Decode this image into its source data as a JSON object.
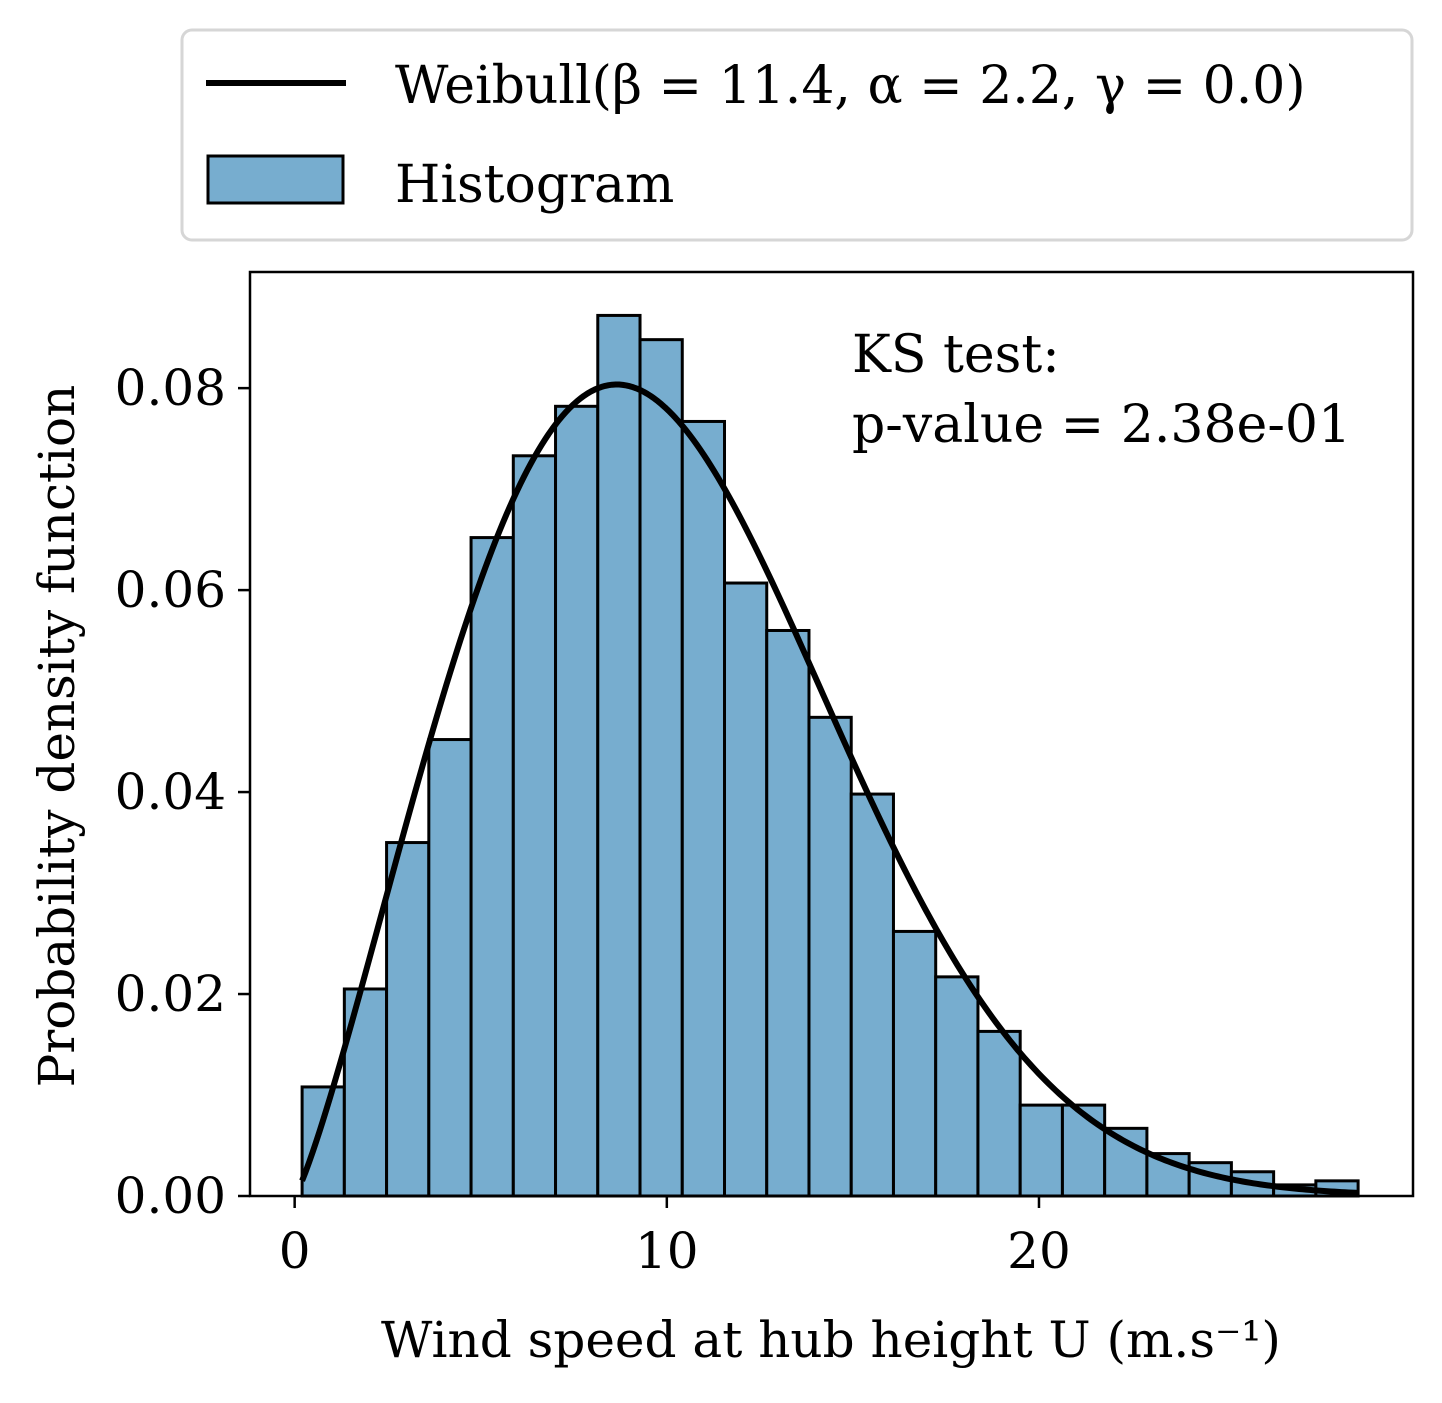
{
  "chart_data": {
    "type": "bar",
    "xlabel": "Wind speed at hub height U (m.s⁻¹)",
    "ylabel": "Probability density function",
    "xlim": [
      -1.2,
      30.05
    ],
    "ylim": [
      0,
      0.0915
    ],
    "xticks": [
      0,
      10,
      20
    ],
    "xtick_labels": [
      "0",
      "10",
      "20"
    ],
    "yticks": [
      0,
      0.02,
      0.04,
      0.06,
      0.08
    ],
    "ytick_labels": [
      "0.00",
      "0.02",
      "0.04",
      "0.06",
      "0.08"
    ],
    "grid": false,
    "legend": {
      "placement": "above",
      "entries": [
        {
          "label": "Weibull(β = 11.4, α = 2.2, γ = 0.0)",
          "kind": "line"
        },
        {
          "label": "Histogram",
          "kind": "patch"
        }
      ]
    },
    "annotation": {
      "line1": "KS test:",
      "line2": "p-value = 2.38e-01"
    },
    "histogram": {
      "bin_start": 0.2,
      "bin_width": 1.135,
      "values": [
        0.0108,
        0.0205,
        0.035,
        0.0452,
        0.0652,
        0.0733,
        0.0782,
        0.0872,
        0.0848,
        0.0767,
        0.0607,
        0.056,
        0.0474,
        0.0398,
        0.0262,
        0.0217,
        0.0163,
        0.009,
        0.009,
        0.0067,
        0.0042,
        0.0033,
        0.0024,
        0.0011,
        0.0015
      ],
      "fill": "#77adcf",
      "edge": "#000000"
    },
    "weibull": {
      "beta": 11.4,
      "alpha": 2.2,
      "gamma": 0.0,
      "x_range": [
        0.2,
        28.6
      ],
      "color": "#000000"
    }
  }
}
